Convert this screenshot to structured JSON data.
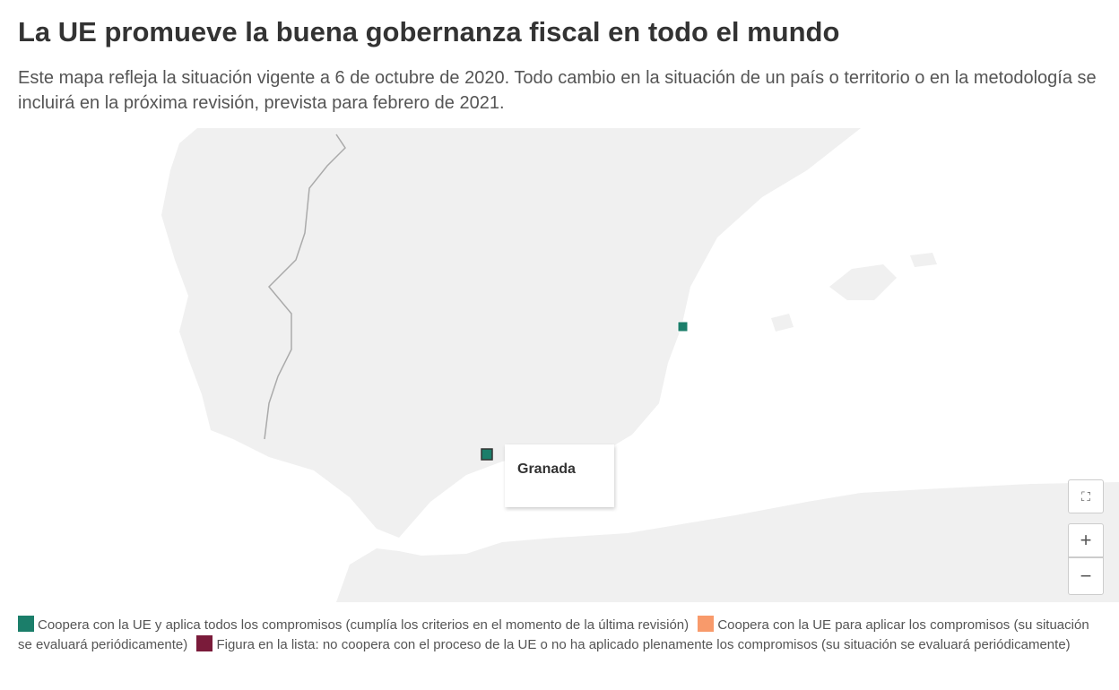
{
  "title": "La UE promueve la buena gobernanza fiscal en todo el mundo",
  "subtitle": "Este mapa refleja la situación vigente a 6 de octubre de 2020. Todo cambio en la situación de un país o territorio o en la metodología se incluirá en la próxima revisión, prevista para febrero de 2021.",
  "map": {
    "tooltip": "Granada",
    "markers": [
      {
        "name": "Granada",
        "color": "#1b7e6a"
      },
      {
        "name": "east-coast",
        "color": "#1b7e6a"
      }
    ],
    "land_color": "#f0f0f0"
  },
  "controls": {
    "fullscreen": "fullscreen-exit",
    "zoom_in": "+",
    "zoom_out": "−"
  },
  "legend": [
    {
      "label": "Coopera con la UE y aplica todos los compromisos (cumplía los criterios en el momento de la última revisión)",
      "color": "#1b7e6a"
    },
    {
      "label": "Coopera con la UE para aplicar los compromisos (su situación se evaluará periódicamente)",
      "color": "#f89a6b"
    },
    {
      "label": "Figura en la lista: no coopera con el proceso de la UE o no ha aplicado plenamente los compromisos (su situación se evaluará periódicamente)",
      "color": "#7a1b3a"
    }
  ]
}
